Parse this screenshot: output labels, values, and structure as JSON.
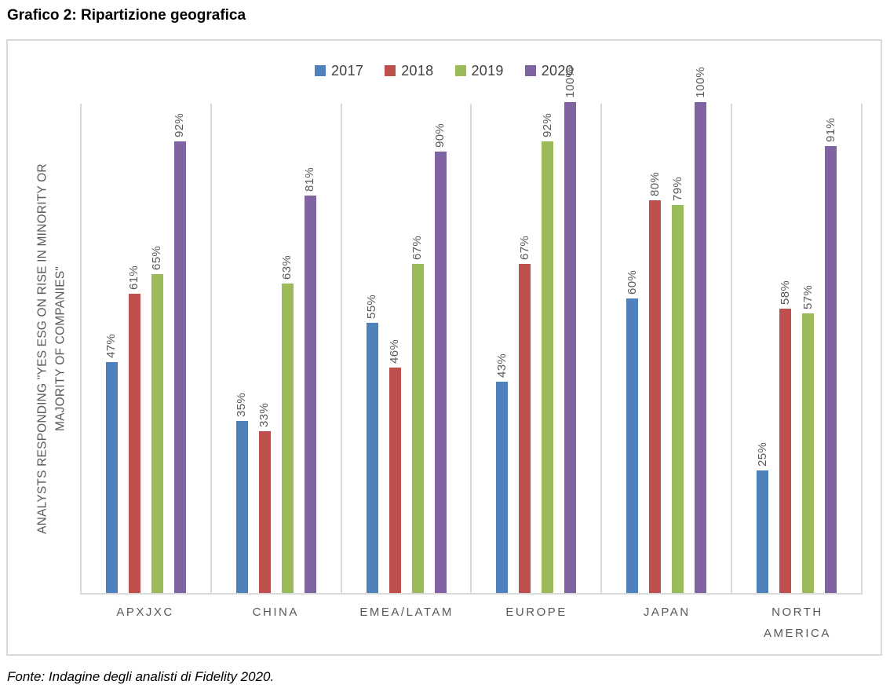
{
  "header": {
    "title": "Grafico 2: Ripartizione geografica"
  },
  "footer": {
    "source": "Fonte: Indagine degli analisti di Fidelity 2020."
  },
  "chart_data": {
    "type": "bar",
    "title": "Grafico 2: Ripartizione geografica",
    "categories": [
      "APXJXC",
      "CHINA",
      "EMEA/LATAM",
      "EUROPE",
      "JAPAN",
      "NORTH AMERICA"
    ],
    "series": [
      {
        "name": "2017",
        "color": "#4F81BD",
        "values": [
          47,
          35,
          55,
          43,
          60,
          25
        ]
      },
      {
        "name": "2018",
        "color": "#C0504D",
        "values": [
          61,
          33,
          46,
          67,
          80,
          58
        ]
      },
      {
        "name": "2019",
        "color": "#9BBB59",
        "values": [
          65,
          63,
          67,
          92,
          79,
          57
        ]
      },
      {
        "name": "2020",
        "color": "#8064A2",
        "values": [
          92,
          81,
          90,
          100,
          100,
          91
        ]
      }
    ],
    "value_suffix": "%",
    "data_labels": "rotated-90-above-bars",
    "ylabel_lines": [
      "ANALYSTS RESPONDING \"YES ESG ON RISE IN MINORITY OR",
      "MAJORITY OF COMPANIES\""
    ],
    "ylim": [
      0,
      100
    ],
    "legend_position": "top-center",
    "grid": "vertical-category-separators",
    "axis_line_color": "#D9D9D9",
    "label_text_color": "#595959"
  }
}
